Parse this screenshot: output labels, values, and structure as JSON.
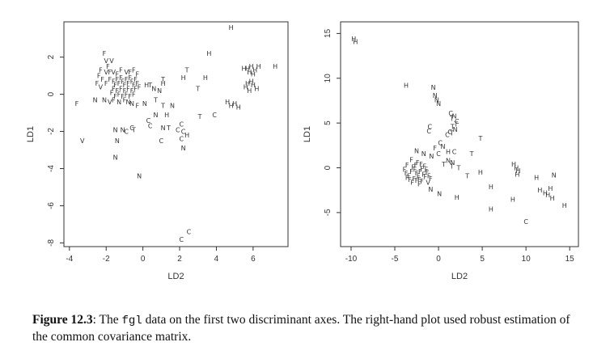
{
  "caption": {
    "label": "Figure 12.3",
    "text_before": ": The ",
    "code": "fgl",
    "text_after": " data on the first two discriminant axes. The right-hand plot used robust estimation of the common covariance matrix."
  },
  "chart_data": [
    {
      "type": "scatter",
      "xlabel": "LD2",
      "ylabel": "LD1",
      "xlim": [
        -4.3,
        7.9
      ],
      "ylim": [
        -8.2,
        3.9
      ],
      "xticks": [
        "-4",
        "-2",
        "0",
        "2",
        "4",
        "6"
      ],
      "yticks": [
        "-8",
        "-6",
        "-4",
        "-2",
        "0",
        "2"
      ],
      "points": [
        {
          "x": 4.8,
          "y": 3.6,
          "label": "H"
        },
        {
          "x": -2.1,
          "y": 2.2,
          "label": "F"
        },
        {
          "x": -2.0,
          "y": 1.8,
          "label": "V"
        },
        {
          "x": -1.7,
          "y": 1.8,
          "label": "V"
        },
        {
          "x": -1.9,
          "y": 1.5,
          "label": "F"
        },
        {
          "x": -2.3,
          "y": 1.3,
          "label": "F"
        },
        {
          "x": -2.0,
          "y": 1.2,
          "label": "V"
        },
        {
          "x": -1.8,
          "y": 1.2,
          "label": "F"
        },
        {
          "x": -1.6,
          "y": 1.2,
          "label": "V"
        },
        {
          "x": -1.4,
          "y": 1.1,
          "label": "F"
        },
        {
          "x": -1.2,
          "y": 1.3,
          "label": "F"
        },
        {
          "x": -0.9,
          "y": 1.2,
          "label": "V"
        },
        {
          "x": -0.7,
          "y": 1.2,
          "label": "F"
        },
        {
          "x": -0.5,
          "y": 1.3,
          "label": "F"
        },
        {
          "x": -0.3,
          "y": 1.1,
          "label": "F"
        },
        {
          "x": -2.4,
          "y": 1.0,
          "label": "F"
        },
        {
          "x": -2.2,
          "y": 0.8,
          "label": "F"
        },
        {
          "x": -2.5,
          "y": 0.6,
          "label": "F"
        },
        {
          "x": -2.3,
          "y": 0.4,
          "label": "V"
        },
        {
          "x": -2.0,
          "y": 0.6,
          "label": "F"
        },
        {
          "x": -1.8,
          "y": 0.8,
          "label": "F"
        },
        {
          "x": -1.6,
          "y": 0.7,
          "label": "F"
        },
        {
          "x": -1.4,
          "y": 0.8,
          "label": "F"
        },
        {
          "x": -1.5,
          "y": 0.5,
          "label": "F"
        },
        {
          "x": -1.3,
          "y": 0.6,
          "label": "F"
        },
        {
          "x": -1.2,
          "y": 0.9,
          "label": "F"
        },
        {
          "x": -1.1,
          "y": 0.7,
          "label": "F"
        },
        {
          "x": -1.0,
          "y": 0.5,
          "label": "F"
        },
        {
          "x": -0.9,
          "y": 0.8,
          "label": "F"
        },
        {
          "x": -0.8,
          "y": 0.6,
          "label": "F"
        },
        {
          "x": -0.7,
          "y": 0.9,
          "label": "F"
        },
        {
          "x": -0.6,
          "y": 0.7,
          "label": "F"
        },
        {
          "x": -0.5,
          "y": 0.5,
          "label": "F"
        },
        {
          "x": -0.4,
          "y": 0.8,
          "label": "F"
        },
        {
          "x": -0.3,
          "y": 0.6,
          "label": "F"
        },
        {
          "x": -0.2,
          "y": 0.4,
          "label": "F"
        },
        {
          "x": -1.6,
          "y": 0.3,
          "label": "F"
        },
        {
          "x": -1.4,
          "y": 0.2,
          "label": "F"
        },
        {
          "x": -1.2,
          "y": 0.3,
          "label": "F"
        },
        {
          "x": -1.0,
          "y": 0.2,
          "label": "F"
        },
        {
          "x": -0.8,
          "y": 0.3,
          "label": "F"
        },
        {
          "x": -0.6,
          "y": 0.2,
          "label": "F"
        },
        {
          "x": -0.4,
          "y": 0.3,
          "label": "F"
        },
        {
          "x": -1.3,
          "y": 0.0,
          "label": "F"
        },
        {
          "x": -1.1,
          "y": -0.1,
          "label": "F"
        },
        {
          "x": -0.9,
          "y": 0.0,
          "label": "F"
        },
        {
          "x": -0.7,
          "y": -0.1,
          "label": "F"
        },
        {
          "x": -0.5,
          "y": 0.0,
          "label": "F"
        },
        {
          "x": -1.5,
          "y": -0.1,
          "label": "F"
        },
        {
          "x": -1.7,
          "y": 0.1,
          "label": "F"
        },
        {
          "x": -3.6,
          "y": -0.5,
          "label": "F"
        },
        {
          "x": -2.6,
          "y": -0.3,
          "label": "N"
        },
        {
          "x": -2.1,
          "y": -0.3,
          "label": "N"
        },
        {
          "x": -1.8,
          "y": -0.4,
          "label": "V"
        },
        {
          "x": -1.6,
          "y": -0.3,
          "label": "F"
        },
        {
          "x": -1.3,
          "y": -0.4,
          "label": "N"
        },
        {
          "x": -1.0,
          "y": -0.3,
          "label": "F"
        },
        {
          "x": -0.8,
          "y": -0.4,
          "label": "N"
        },
        {
          "x": -0.6,
          "y": -0.5,
          "label": "N"
        },
        {
          "x": -0.3,
          "y": -0.6,
          "label": "F"
        },
        {
          "x": 0.1,
          "y": -0.5,
          "label": "N"
        },
        {
          "x": 0.2,
          "y": 0.5,
          "label": "H"
        },
        {
          "x": 0.4,
          "y": 0.5,
          "label": "T"
        },
        {
          "x": 0.6,
          "y": 0.3,
          "label": "N"
        },
        {
          "x": 0.9,
          "y": 0.2,
          "label": "N"
        },
        {
          "x": 1.1,
          "y": 0.6,
          "label": "H"
        },
        {
          "x": 1.1,
          "y": 0.8,
          "label": "T"
        },
        {
          "x": 0.7,
          "y": -0.3,
          "label": "T"
        },
        {
          "x": 1.1,
          "y": -0.6,
          "label": "T"
        },
        {
          "x": 1.6,
          "y": -0.6,
          "label": "N"
        },
        {
          "x": 0.7,
          "y": -1.1,
          "label": "N"
        },
        {
          "x": 1.3,
          "y": -1.1,
          "label": "H"
        },
        {
          "x": 2.4,
          "y": 1.3,
          "label": "T"
        },
        {
          "x": 2.2,
          "y": 0.9,
          "label": "H"
        },
        {
          "x": 3.6,
          "y": 2.2,
          "label": "H"
        },
        {
          "x": 3.4,
          "y": 0.9,
          "label": "H"
        },
        {
          "x": 3.0,
          "y": 0.3,
          "label": "T"
        },
        {
          "x": 3.9,
          "y": -1.1,
          "label": "C"
        },
        {
          "x": 3.1,
          "y": -1.2,
          "label": "T"
        },
        {
          "x": 4.6,
          "y": -0.4,
          "label": "H"
        },
        {
          "x": 4.8,
          "y": -0.6,
          "label": "H"
        },
        {
          "x": 5.0,
          "y": -0.5,
          "label": "H"
        },
        {
          "x": 5.2,
          "y": -0.7,
          "label": "H"
        },
        {
          "x": 5.5,
          "y": 1.4,
          "label": "H"
        },
        {
          "x": 5.7,
          "y": 1.4,
          "label": "H"
        },
        {
          "x": 5.9,
          "y": 1.5,
          "label": "H"
        },
        {
          "x": 6.1,
          "y": 1.3,
          "label": "H"
        },
        {
          "x": 6.3,
          "y": 1.5,
          "label": "H"
        },
        {
          "x": 5.8,
          "y": 1.2,
          "label": "H"
        },
        {
          "x": 6.0,
          "y": 1.1,
          "label": "H"
        },
        {
          "x": 7.2,
          "y": 1.5,
          "label": "H"
        },
        {
          "x": 5.6,
          "y": 0.4,
          "label": "H"
        },
        {
          "x": 5.8,
          "y": 0.2,
          "label": "H"
        },
        {
          "x": 6.0,
          "y": 0.5,
          "label": "H"
        },
        {
          "x": 6.2,
          "y": 0.3,
          "label": "H"
        },
        {
          "x": 5.9,
          "y": 0.7,
          "label": "H"
        },
        {
          "x": 5.7,
          "y": 0.6,
          "label": "H"
        },
        {
          "x": -3.3,
          "y": -2.5,
          "label": "V"
        },
        {
          "x": -1.5,
          "y": -1.9,
          "label": "N"
        },
        {
          "x": -1.1,
          "y": -1.9,
          "label": "N"
        },
        {
          "x": -0.9,
          "y": -2.0,
          "label": "C"
        },
        {
          "x": -0.6,
          "y": -1.8,
          "label": "C"
        },
        {
          "x": -0.5,
          "y": -1.9,
          "label": "T"
        },
        {
          "x": -1.4,
          "y": -2.5,
          "label": "N"
        },
        {
          "x": -1.5,
          "y": -3.4,
          "label": "N"
        },
        {
          "x": -0.2,
          "y": -4.4,
          "label": "N"
        },
        {
          "x": 0.3,
          "y": -1.4,
          "label": "C"
        },
        {
          "x": 0.4,
          "y": -1.7,
          "label": "C"
        },
        {
          "x": 1.1,
          "y": -1.8,
          "label": "N"
        },
        {
          "x": 1.4,
          "y": -1.8,
          "label": "T"
        },
        {
          "x": 2.1,
          "y": -1.6,
          "label": "C"
        },
        {
          "x": 1.9,
          "y": -1.9,
          "label": "C"
        },
        {
          "x": 2.2,
          "y": -2.0,
          "label": "C"
        },
        {
          "x": 2.4,
          "y": -2.2,
          "label": "H"
        },
        {
          "x": 2.1,
          "y": -2.4,
          "label": "C"
        },
        {
          "x": 1.0,
          "y": -2.5,
          "label": "C"
        },
        {
          "x": 2.2,
          "y": -2.9,
          "label": "N"
        },
        {
          "x": 2.5,
          "y": -7.4,
          "label": "C"
        },
        {
          "x": 2.1,
          "y": -7.8,
          "label": "C"
        }
      ]
    },
    {
      "type": "scatter",
      "xlabel": "LD2",
      "ylabel": "LD1",
      "xlim": [
        -11.2,
        16.0
      ],
      "ylim": [
        -8.8,
        16.3
      ],
      "xticks": [
        "-10",
        "-5",
        "0",
        "5",
        "10",
        "15"
      ],
      "yticks": [
        "-5",
        "0",
        "5",
        "10",
        "15"
      ],
      "points": [
        {
          "x": -9.7,
          "y": 14.4,
          "label": "H"
        },
        {
          "x": -9.5,
          "y": 14.1,
          "label": "H"
        },
        {
          "x": -3.7,
          "y": 9.2,
          "label": "H"
        },
        {
          "x": -0.6,
          "y": 9.0,
          "label": "N"
        },
        {
          "x": -0.4,
          "y": 8.1,
          "label": "N"
        },
        {
          "x": -0.2,
          "y": 7.6,
          "label": "N"
        },
        {
          "x": 0.0,
          "y": 7.2,
          "label": "N"
        },
        {
          "x": 1.4,
          "y": 6.1,
          "label": "C"
        },
        {
          "x": 1.8,
          "y": 5.8,
          "label": "N"
        },
        {
          "x": 1.5,
          "y": 5.5,
          "label": "T"
        },
        {
          "x": 2.1,
          "y": 5.2,
          "label": "C"
        },
        {
          "x": 2.0,
          "y": 4.9,
          "label": "T"
        },
        {
          "x": 1.6,
          "y": 4.6,
          "label": "T"
        },
        {
          "x": 1.9,
          "y": 4.3,
          "label": "N"
        },
        {
          "x": 1.3,
          "y": 4.0,
          "label": "C"
        },
        {
          "x": -1.0,
          "y": 4.6,
          "label": "C"
        },
        {
          "x": -1.1,
          "y": 4.1,
          "label": "C"
        },
        {
          "x": 1.0,
          "y": 3.7,
          "label": "C"
        },
        {
          "x": 1.5,
          "y": 3.9,
          "label": "T"
        },
        {
          "x": 0.2,
          "y": 2.8,
          "label": "C"
        },
        {
          "x": 0.5,
          "y": 2.4,
          "label": "N"
        },
        {
          "x": -0.4,
          "y": 2.2,
          "label": "F"
        },
        {
          "x": 0.0,
          "y": 1.6,
          "label": "C"
        },
        {
          "x": 1.1,
          "y": 1.8,
          "label": "H"
        },
        {
          "x": 1.8,
          "y": 1.8,
          "label": "C"
        },
        {
          "x": 4.8,
          "y": 3.3,
          "label": "T"
        },
        {
          "x": 3.8,
          "y": 1.6,
          "label": "T"
        },
        {
          "x": -2.5,
          "y": 1.9,
          "label": "N"
        },
        {
          "x": -1.7,
          "y": 1.6,
          "label": "N"
        },
        {
          "x": -0.8,
          "y": 1.3,
          "label": "N"
        },
        {
          "x": 1.1,
          "y": 0.8,
          "label": "N"
        },
        {
          "x": 1.6,
          "y": 0.6,
          "label": "N"
        },
        {
          "x": 0.6,
          "y": 0.4,
          "label": "T"
        },
        {
          "x": 1.5,
          "y": 0.2,
          "label": "T"
        },
        {
          "x": 2.3,
          "y": 0.0,
          "label": "T"
        },
        {
          "x": 3.3,
          "y": -0.9,
          "label": "T"
        },
        {
          "x": 4.8,
          "y": -0.5,
          "label": "H"
        },
        {
          "x": -3.1,
          "y": 0.9,
          "label": "F"
        },
        {
          "x": -3.6,
          "y": 0.3,
          "label": "F"
        },
        {
          "x": -3.9,
          "y": -0.2,
          "label": "F"
        },
        {
          "x": -3.7,
          "y": -0.6,
          "label": "F"
        },
        {
          "x": -3.4,
          "y": -0.9,
          "label": "F"
        },
        {
          "x": -3.1,
          "y": -0.4,
          "label": "F"
        },
        {
          "x": -2.9,
          "y": 0.1,
          "label": "F"
        },
        {
          "x": -2.7,
          "y": -0.2,
          "label": "F"
        },
        {
          "x": -2.5,
          "y": -0.6,
          "label": "F"
        },
        {
          "x": -2.3,
          "y": -0.9,
          "label": "F"
        },
        {
          "x": -2.1,
          "y": -0.4,
          "label": "F"
        },
        {
          "x": -1.9,
          "y": -0.1,
          "label": "F"
        },
        {
          "x": -1.7,
          "y": -0.7,
          "label": "F"
        },
        {
          "x": -1.5,
          "y": -1.0,
          "label": "F"
        },
        {
          "x": -1.3,
          "y": -0.5,
          "label": "F"
        },
        {
          "x": -1.1,
          "y": -0.9,
          "label": "F"
        },
        {
          "x": -0.9,
          "y": -1.2,
          "label": "F"
        },
        {
          "x": -2.8,
          "y": -1.2,
          "label": "F"
        },
        {
          "x": -2.5,
          "y": -1.4,
          "label": "F"
        },
        {
          "x": -2.2,
          "y": -1.3,
          "label": "F"
        },
        {
          "x": -1.9,
          "y": -1.5,
          "label": "F"
        },
        {
          "x": -2.2,
          "y": -1.8,
          "label": "F"
        },
        {
          "x": -3.3,
          "y": -1.3,
          "label": "F"
        },
        {
          "x": -3.0,
          "y": -1.6,
          "label": "F"
        },
        {
          "x": -2.6,
          "y": 0.3,
          "label": "F"
        },
        {
          "x": -2.4,
          "y": 0.6,
          "label": "F"
        },
        {
          "x": -2.0,
          "y": 0.4,
          "label": "F"
        },
        {
          "x": -1.6,
          "y": 0.2,
          "label": "F"
        },
        {
          "x": -1.4,
          "y": -0.2,
          "label": "F"
        },
        {
          "x": -3.6,
          "y": -1.1,
          "label": "F"
        },
        {
          "x": -1.2,
          "y": -1.6,
          "label": "V"
        },
        {
          "x": 0.1,
          "y": -2.9,
          "label": "N"
        },
        {
          "x": -0.9,
          "y": -2.4,
          "label": "N"
        },
        {
          "x": 2.1,
          "y": -3.3,
          "label": "H"
        },
        {
          "x": 6.0,
          "y": -2.1,
          "label": "H"
        },
        {
          "x": 6.0,
          "y": -4.6,
          "label": "H"
        },
        {
          "x": 8.5,
          "y": -3.5,
          "label": "H"
        },
        {
          "x": 10.0,
          "y": -6.0,
          "label": "C"
        },
        {
          "x": 8.6,
          "y": 0.4,
          "label": "H"
        },
        {
          "x": 8.9,
          "y": 0.0,
          "label": "H"
        },
        {
          "x": 9.1,
          "y": -0.3,
          "label": "H"
        },
        {
          "x": 9.0,
          "y": -0.7,
          "label": "H"
        },
        {
          "x": 11.2,
          "y": -1.1,
          "label": "H"
        },
        {
          "x": 11.6,
          "y": -2.5,
          "label": "H"
        },
        {
          "x": 12.2,
          "y": -2.8,
          "label": "H"
        },
        {
          "x": 12.5,
          "y": -3.0,
          "label": "H"
        },
        {
          "x": 12.8,
          "y": -2.3,
          "label": "H"
        },
        {
          "x": 13.0,
          "y": -3.4,
          "label": "H"
        },
        {
          "x": 13.2,
          "y": -0.8,
          "label": "N"
        },
        {
          "x": 14.4,
          "y": -4.2,
          "label": "H"
        }
      ]
    }
  ]
}
